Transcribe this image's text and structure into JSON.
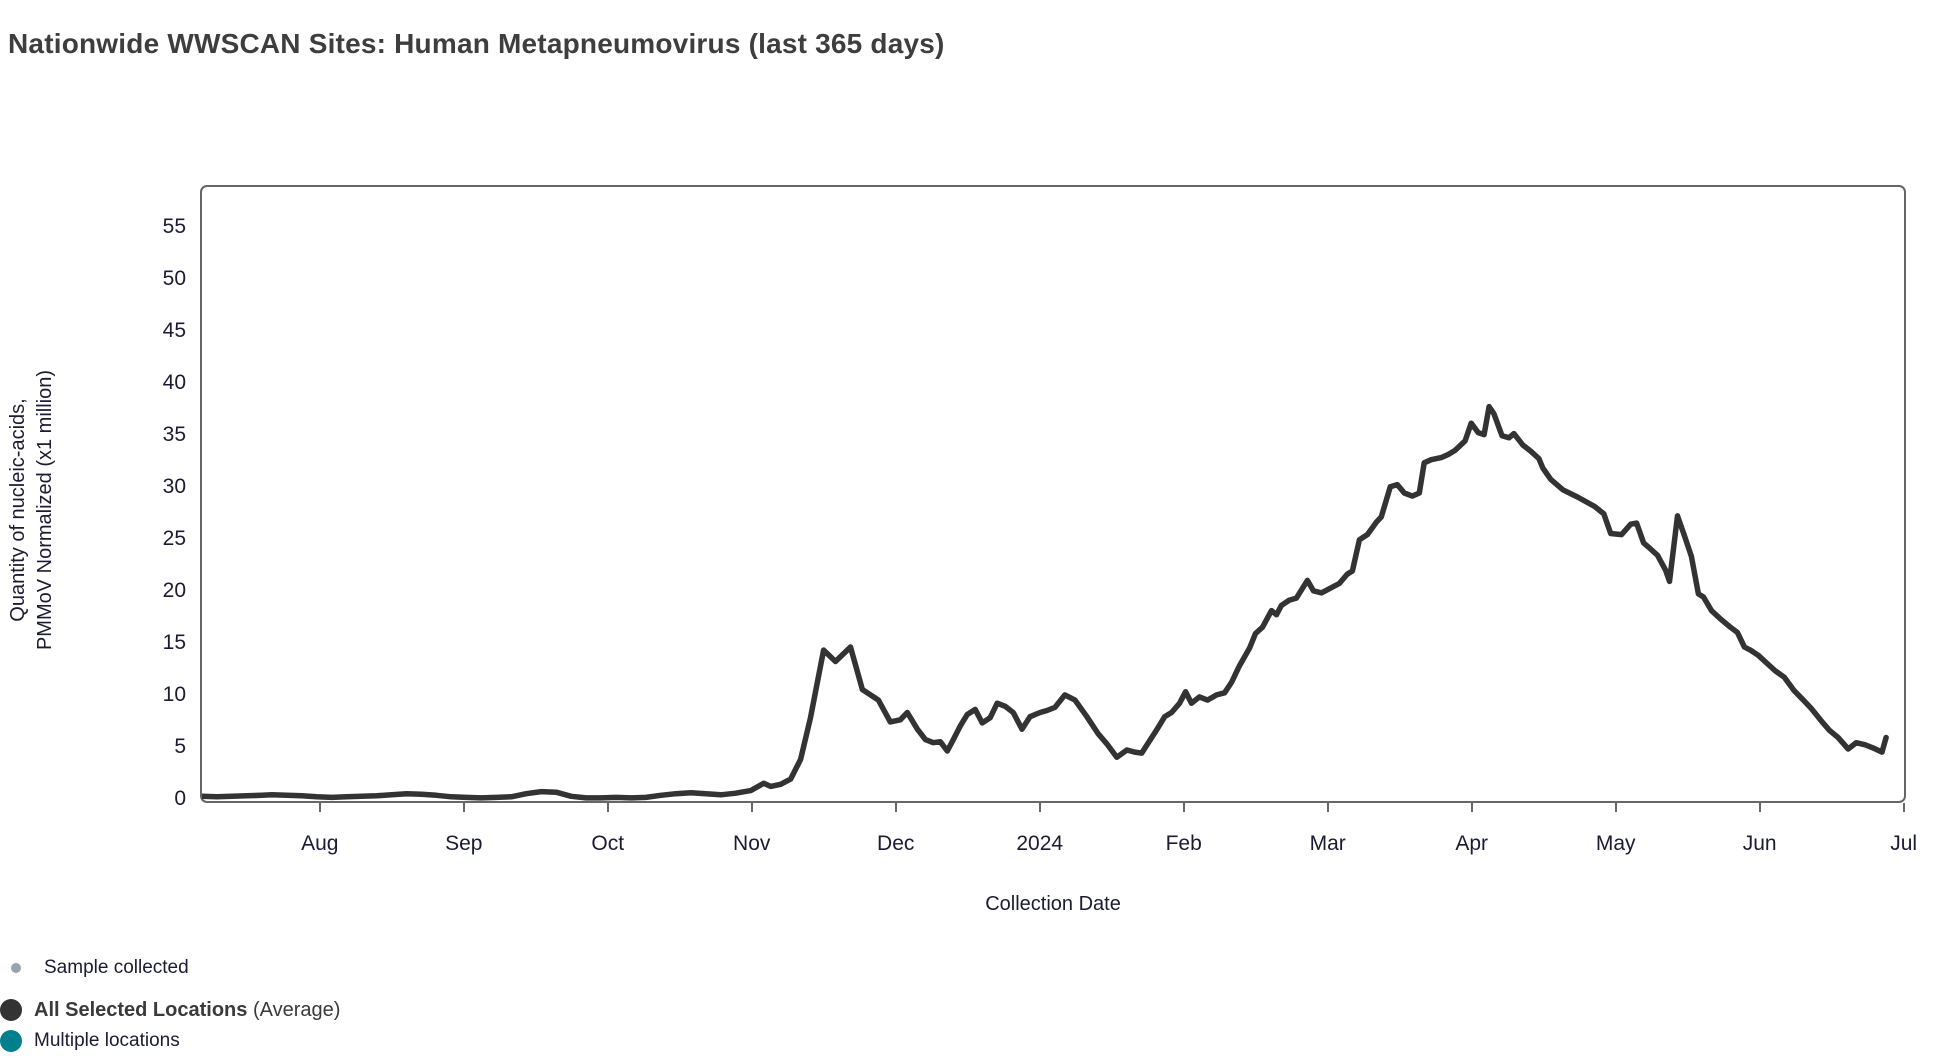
{
  "title": "Nationwide WWSCAN Sites: Human Metapneumovirus (last 365 days)",
  "axes": {
    "x_title": "Collection Date",
    "y_title_line1": "Quantity of nucleic-acids,",
    "y_title_line2": "PMMoV Normalized (x1 million)"
  },
  "legend": {
    "items": [
      {
        "label": "Sample collected",
        "color": "#98a1ac",
        "size": "small",
        "bold": false
      },
      {
        "label": "All Selected Locations",
        "suffix": " (Average)",
        "color": "#333333",
        "size": "large",
        "bold": true
      },
      {
        "label": "Multiple locations",
        "color": "#007f8c",
        "size": "large",
        "bold": false
      }
    ]
  },
  "colors": {
    "line": "#333333",
    "axis_border": "#666666",
    "tick_text": "#1b1b33",
    "title_text": "#3e3e3e"
  },
  "chart_data": {
    "type": "line",
    "title": "Nationwide WWSCAN Sites: Human Metapneumovirus (last 365 days)",
    "xlabel": "Collection Date",
    "ylabel": "Quantity of nucleic-acids, PMMoV Normalized (x1 million)",
    "x_range": [
      "mid-July 2023",
      "July 2024"
    ],
    "ylim": [
      0,
      59
    ],
    "y_ticks": [
      0,
      5,
      10,
      15,
      20,
      25,
      30,
      35,
      40,
      45,
      50,
      55
    ],
    "x_ticks": [
      {
        "label": "Aug",
        "f": 0.0692
      },
      {
        "label": "Sep",
        "f": 0.1538
      },
      {
        "label": "Oct",
        "f": 0.2384
      },
      {
        "label": "Nov",
        "f": 0.323
      },
      {
        "label": "Dec",
        "f": 0.4076
      },
      {
        "label": "2024",
        "f": 0.4922
      },
      {
        "label": "Feb",
        "f": 0.5768
      },
      {
        "label": "Mar",
        "f": 0.6614
      },
      {
        "label": "Apr",
        "f": 0.746
      },
      {
        "label": "May",
        "f": 0.8306
      },
      {
        "label": "Jun",
        "f": 0.9152
      },
      {
        "label": "Jul",
        "f": 0.9998
      }
    ],
    "grid": false,
    "legend_position": "bottom-left",
    "series": [
      {
        "name": "All Selected Locations (Average)",
        "color": "#333333",
        "points": [
          [
            0.0,
            0.45
          ],
          [
            0.0088,
            0.4
          ],
          [
            0.0176,
            0.45
          ],
          [
            0.0264,
            0.5
          ],
          [
            0.0352,
            0.55
          ],
          [
            0.041,
            0.6
          ],
          [
            0.0498,
            0.55
          ],
          [
            0.0586,
            0.5
          ],
          [
            0.0674,
            0.4
          ],
          [
            0.0762,
            0.35
          ],
          [
            0.085,
            0.4
          ],
          [
            0.0938,
            0.45
          ],
          [
            0.1026,
            0.5
          ],
          [
            0.1114,
            0.6
          ],
          [
            0.1202,
            0.7
          ],
          [
            0.129,
            0.65
          ],
          [
            0.1377,
            0.55
          ],
          [
            0.1465,
            0.4
          ],
          [
            0.1553,
            0.35
          ],
          [
            0.1641,
            0.3
          ],
          [
            0.1729,
            0.35
          ],
          [
            0.1817,
            0.4
          ],
          [
            0.1905,
            0.7
          ],
          [
            0.1993,
            0.9
          ],
          [
            0.2081,
            0.85
          ],
          [
            0.2169,
            0.45
          ],
          [
            0.2257,
            0.3
          ],
          [
            0.2345,
            0.3
          ],
          [
            0.2433,
            0.35
          ],
          [
            0.2521,
            0.3
          ],
          [
            0.2608,
            0.35
          ],
          [
            0.2696,
            0.55
          ],
          [
            0.2784,
            0.7
          ],
          [
            0.2872,
            0.8
          ],
          [
            0.296,
            0.7
          ],
          [
            0.3048,
            0.6
          ],
          [
            0.3136,
            0.75
          ],
          [
            0.3224,
            1.0
          ],
          [
            0.33,
            1.7
          ],
          [
            0.3341,
            1.4
          ],
          [
            0.34,
            1.6
          ],
          [
            0.3458,
            2.1
          ],
          [
            0.3517,
            4.0
          ],
          [
            0.3575,
            8.0
          ],
          [
            0.3652,
            14.5
          ],
          [
            0.3722,
            13.4
          ],
          [
            0.381,
            14.8
          ],
          [
            0.388,
            10.7
          ],
          [
            0.3974,
            9.7
          ],
          [
            0.4044,
            7.6
          ],
          [
            0.4103,
            7.8
          ],
          [
            0.4144,
            8.5
          ],
          [
            0.4203,
            6.9
          ],
          [
            0.425,
            5.9
          ],
          [
            0.4297,
            5.6
          ],
          [
            0.4338,
            5.7
          ],
          [
            0.4379,
            4.8
          ],
          [
            0.4414,
            5.9
          ],
          [
            0.4455,
            7.2
          ],
          [
            0.4496,
            8.3
          ],
          [
            0.4543,
            8.8
          ],
          [
            0.4584,
            7.5
          ],
          [
            0.4631,
            8.0
          ],
          [
            0.4672,
            9.4
          ],
          [
            0.4719,
            9.1
          ],
          [
            0.4766,
            8.5
          ],
          [
            0.4818,
            6.9
          ],
          [
            0.4865,
            8.1
          ],
          [
            0.4924,
            8.5
          ],
          [
            0.4965,
            8.7
          ],
          [
            0.5012,
            9.0
          ],
          [
            0.507,
            10.2
          ],
          [
            0.5129,
            9.7
          ],
          [
            0.5199,
            8.1
          ],
          [
            0.5264,
            6.5
          ],
          [
            0.5316,
            5.5
          ],
          [
            0.5375,
            4.2
          ],
          [
            0.5434,
            4.9
          ],
          [
            0.548,
            4.7
          ],
          [
            0.5521,
            4.6
          ],
          [
            0.5568,
            5.8
          ],
          [
            0.5615,
            7.0
          ],
          [
            0.5656,
            8.1
          ],
          [
            0.5697,
            8.5
          ],
          [
            0.5744,
            9.4
          ],
          [
            0.5779,
            10.5
          ],
          [
            0.5814,
            9.4
          ],
          [
            0.5861,
            10.0
          ],
          [
            0.5908,
            9.7
          ],
          [
            0.5961,
            10.2
          ],
          [
            0.6008,
            10.4
          ],
          [
            0.6049,
            11.4
          ],
          [
            0.6096,
            13.0
          ],
          [
            0.6155,
            14.7
          ],
          [
            0.619,
            16.1
          ],
          [
            0.6231,
            16.7
          ],
          [
            0.6284,
            18.3
          ],
          [
            0.6313,
            17.9
          ],
          [
            0.6342,
            18.8
          ],
          [
            0.6389,
            19.3
          ],
          [
            0.643,
            19.5
          ],
          [
            0.6495,
            21.2
          ],
          [
            0.653,
            20.2
          ],
          [
            0.6577,
            20.0
          ],
          [
            0.6624,
            20.4
          ],
          [
            0.6682,
            20.9
          ],
          [
            0.6729,
            21.8
          ],
          [
            0.6759,
            22.1
          ],
          [
            0.68,
            25.1
          ],
          [
            0.6847,
            25.6
          ],
          [
            0.69,
            26.8
          ],
          [
            0.6929,
            27.3
          ],
          [
            0.6982,
            30.2
          ],
          [
            0.7023,
            30.4
          ],
          [
            0.7064,
            29.6
          ],
          [
            0.7111,
            29.3
          ],
          [
            0.7152,
            29.6
          ],
          [
            0.7181,
            32.5
          ],
          [
            0.7222,
            32.8
          ],
          [
            0.7281,
            33.0
          ],
          [
            0.7322,
            33.3
          ],
          [
            0.7363,
            33.7
          ],
          [
            0.7421,
            34.6
          ],
          [
            0.7457,
            36.3
          ],
          [
            0.7498,
            35.4
          ],
          [
            0.7533,
            35.2
          ],
          [
            0.7562,
            37.9
          ],
          [
            0.7591,
            37.2
          ],
          [
            0.7638,
            35.1
          ],
          [
            0.7679,
            34.9
          ],
          [
            0.7708,
            35.3
          ],
          [
            0.7761,
            34.2
          ],
          [
            0.7808,
            33.6
          ],
          [
            0.7855,
            32.9
          ],
          [
            0.7878,
            32.0
          ],
          [
            0.7925,
            30.9
          ],
          [
            0.7996,
            29.9
          ],
          [
            0.8083,
            29.2
          ],
          [
            0.8183,
            28.3
          ],
          [
            0.8236,
            27.6
          ],
          [
            0.8277,
            25.7
          ],
          [
            0.8341,
            25.6
          ],
          [
            0.8394,
            26.6
          ],
          [
            0.8429,
            26.7
          ],
          [
            0.847,
            24.8
          ],
          [
            0.8505,
            24.3
          ],
          [
            0.8552,
            23.6
          ],
          [
            0.8599,
            22.2
          ],
          [
            0.8622,
            21.1
          ],
          [
            0.8669,
            27.4
          ],
          [
            0.871,
            25.5
          ],
          [
            0.8751,
            23.5
          ],
          [
            0.8792,
            19.9
          ],
          [
            0.8822,
            19.6
          ],
          [
            0.8869,
            18.3
          ],
          [
            0.8921,
            17.5
          ],
          [
            0.898,
            16.7
          ],
          [
            0.9021,
            16.2
          ],
          [
            0.9062,
            14.8
          ],
          [
            0.9097,
            14.5
          ],
          [
            0.9144,
            14.0
          ],
          [
            0.9197,
            13.2
          ],
          [
            0.9244,
            12.5
          ],
          [
            0.9297,
            11.9
          ],
          [
            0.9355,
            10.6
          ],
          [
            0.9414,
            9.6
          ],
          [
            0.9455,
            8.9
          ],
          [
            0.9514,
            7.7
          ],
          [
            0.9561,
            6.8
          ],
          [
            0.9613,
            6.1
          ],
          [
            0.9672,
            5.0
          ],
          [
            0.9719,
            5.6
          ],
          [
            0.9772,
            5.4
          ],
          [
            0.9818,
            5.1
          ],
          [
            0.9871,
            4.7
          ],
          [
            0.9895,
            6.1
          ]
        ]
      }
    ]
  }
}
